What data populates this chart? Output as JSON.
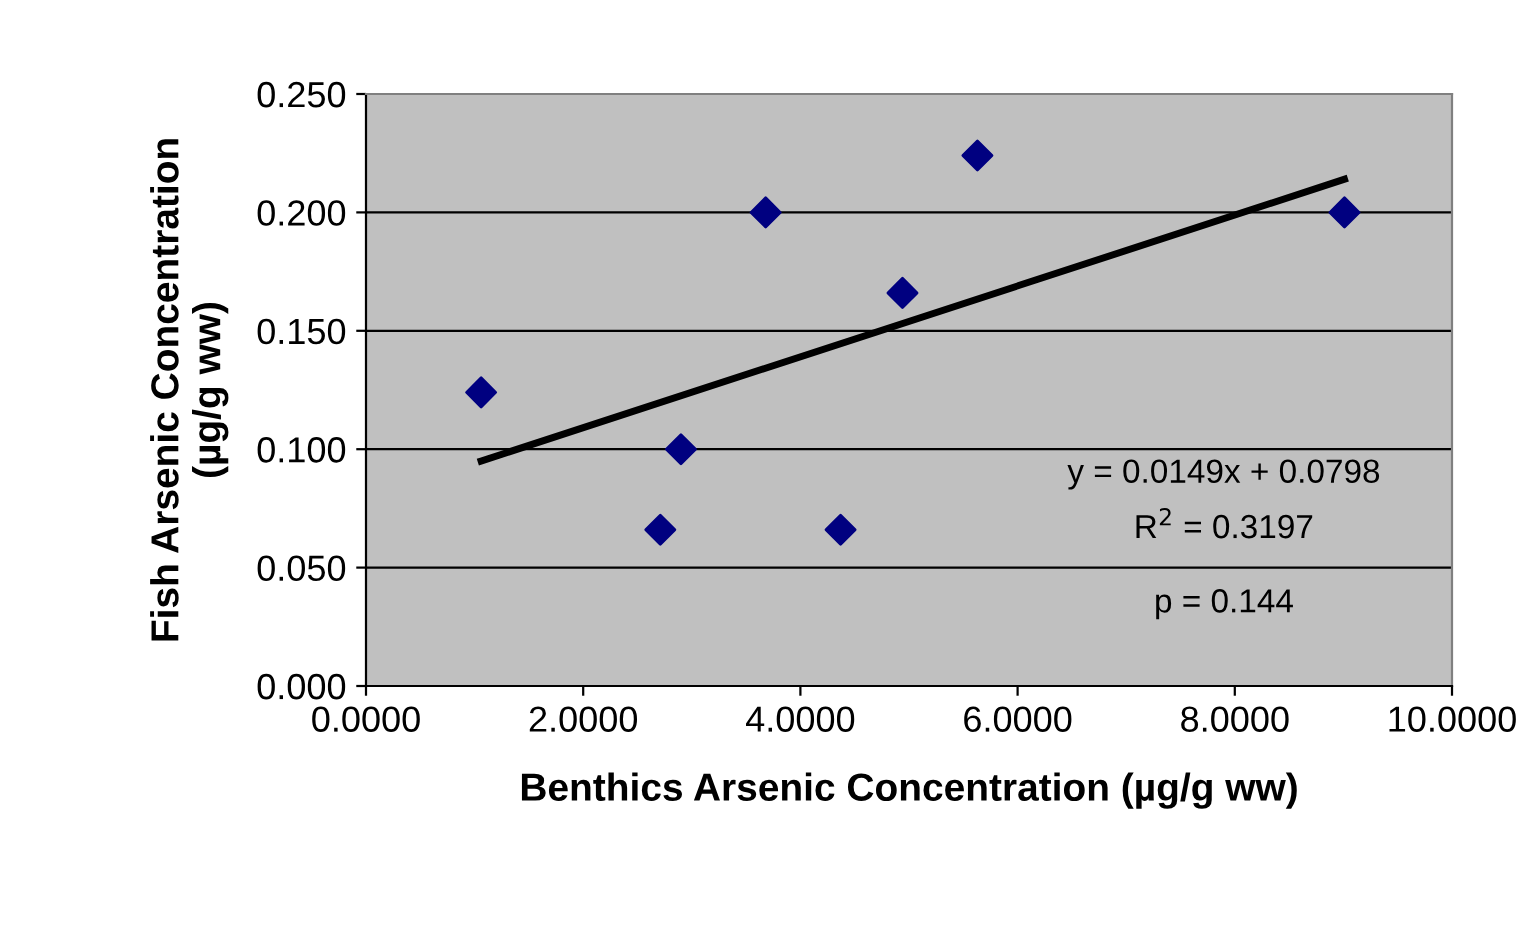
{
  "chart_data": {
    "type": "scatter",
    "xlabel": "Benthics Arsenic Concentration (µg/g ww)",
    "ylabel": "Fish Arsenic Concentration\n(µg/g ww)",
    "series": [
      {
        "color": "#000080",
        "marker": "diamond",
        "x": [
          1.06,
          2.71,
          2.9,
          3.68,
          4.37,
          4.94,
          5.63,
          9.01
        ],
        "values": [
          0.124,
          0.066,
          0.1,
          0.2,
          0.066,
          0.166,
          0.224,
          0.2
        ]
      },
      {
        "type": "line",
        "color": "#000000",
        "marker": "none",
        "line_style": "solid",
        "x": [
          1.06,
          9.01
        ],
        "values": [
          0.095,
          0.214
        ]
      }
    ],
    "annotations": [
      "y = 0.0149x + 0.0798",
      "R$^{2}$ = 0.3197",
      "p = 0.144"
    ],
    "xlim": [
      0,
      10
    ],
    "xticks": [
      {
        "value": 0,
        "label": "0.0000"
      },
      {
        "value": 2,
        "label": "2.0000"
      },
      {
        "value": 4,
        "label": "4.0000"
      },
      {
        "value": 6,
        "label": "6.0000"
      },
      {
        "value": 8,
        "label": "8.0000"
      },
      {
        "value": 10,
        "label": "10.0000"
      }
    ],
    "ylim": [
      0,
      0.25
    ],
    "yticks": [
      {
        "value": 0,
        "label": "0.000"
      },
      {
        "value": 0.05,
        "label": "0.050"
      },
      {
        "value": 0.1,
        "label": "0.100"
      },
      {
        "value": 0.15,
        "label": "0.150"
      },
      {
        "value": 0.2,
        "label": "0.200"
      },
      {
        "value": 0.25,
        "label": "0.250"
      }
    ],
    "grid": "y"
  }
}
